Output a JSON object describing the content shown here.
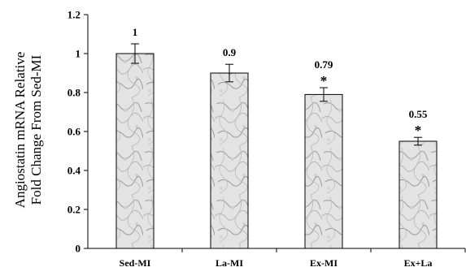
{
  "chart_data": {
    "type": "bar",
    "categories": [
      "Sed-MI",
      "La-MI",
      "Ex-MI",
      "Ex+La"
    ],
    "values": [
      1.0,
      0.9,
      0.79,
      0.55
    ],
    "errors": [
      0.05,
      0.045,
      0.035,
      0.02
    ],
    "data_labels": [
      "1",
      "0.9",
      "0.79",
      "0.55"
    ],
    "significance": [
      "",
      "",
      "*",
      "*"
    ],
    "ylabel_lines": [
      "Angiostatin mRNA Relative",
      "Fold Change From Sed-MI"
    ],
    "xlabel": "",
    "ylim": [
      0,
      1.2
    ],
    "yticks": [
      0,
      0.2,
      0.4,
      0.6,
      0.8,
      1,
      1.2
    ],
    "ytick_labels": [
      "0",
      "0.2",
      "0.4",
      "0.6",
      "0.8",
      "1",
      "1.2"
    ],
    "grid": false,
    "bar_fill": "marble-gray"
  }
}
